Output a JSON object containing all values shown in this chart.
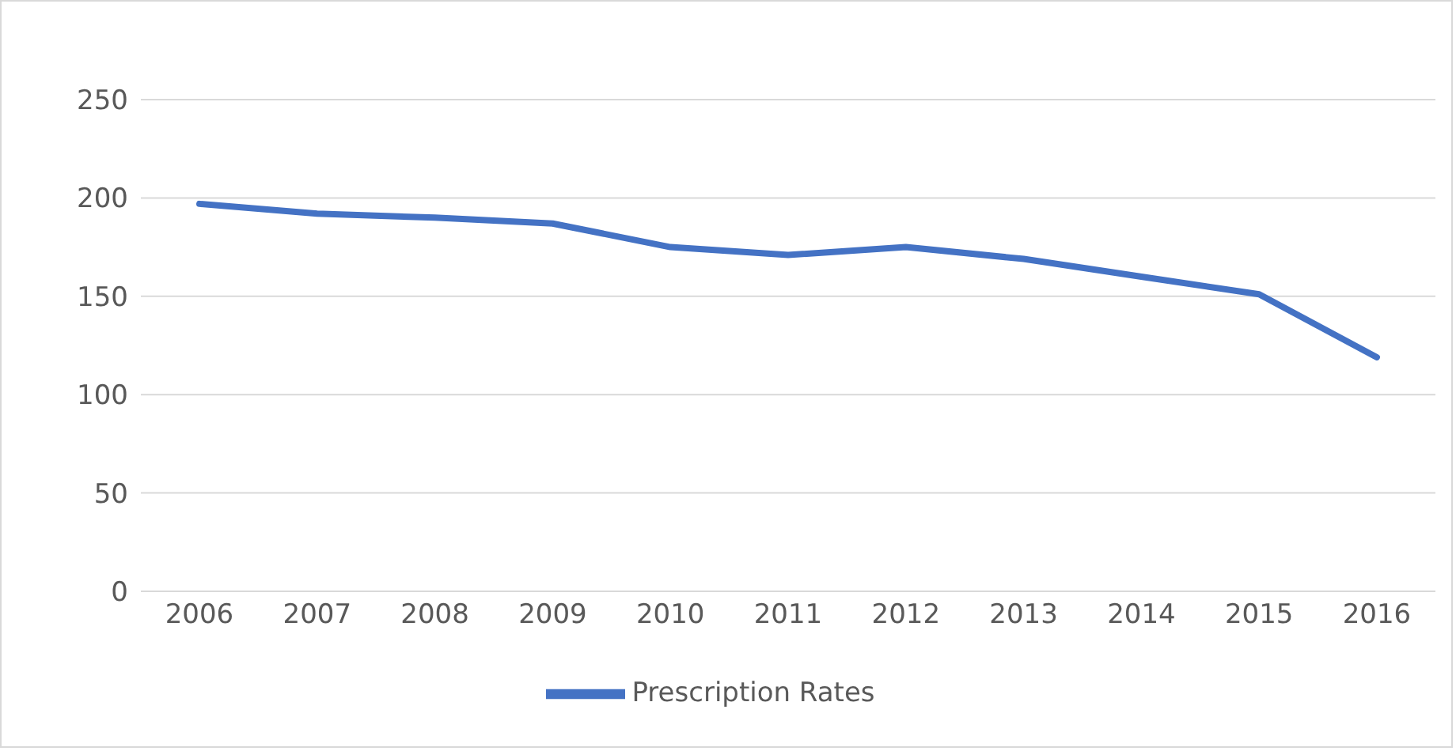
{
  "chart_data": {
    "type": "line",
    "categories": [
      "2006",
      "2007",
      "2008",
      "2009",
      "2010",
      "2011",
      "2012",
      "2013",
      "2014",
      "2015",
      "2016"
    ],
    "series": [
      {
        "name": "Prescription Rates",
        "color": "#4472c4",
        "values": [
          197,
          192,
          190,
          187,
          175,
          171,
          175,
          169,
          160,
          151,
          119
        ]
      }
    ],
    "ylim": [
      0,
      250
    ],
    "yticks": [
      0,
      50,
      100,
      150,
      200,
      250
    ],
    "grid": "y",
    "legend": "bottom"
  }
}
